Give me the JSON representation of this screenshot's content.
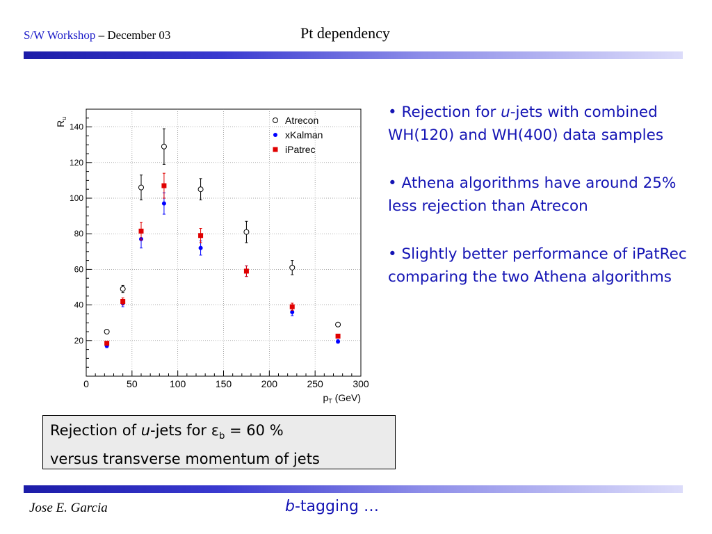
{
  "header": {
    "workshop": "S/W Workshop",
    "dash": " – ",
    "date": "December 03",
    "title": "Pt dependency"
  },
  "bullets": {
    "b1_pre": "• Rejection for ",
    "b1_em": "u",
    "b1_post": "-jets with combined WH(120) and WH(400) data samples",
    "b2": "• Athena algorithms have around 25% less rejection than Atrecon",
    "b3": "• Slightly better performance of iPatRec comparing the two Athena  algorithms"
  },
  "caption": {
    "pre": "Rejection of ",
    "em": "u",
    "mid": "-jets for ",
    "eps": "ε",
    "sub": "b",
    "post": " = 60 %",
    "line2": "versus transverse momentum of jets"
  },
  "footer": {
    "author": "Jose E. Garcia",
    "topic_em": "b",
    "topic_rest": "-tagging …"
  },
  "colors": {
    "accent_text": "#1414b4",
    "xkalman": "#0000ff",
    "ipatrec": "#e00000",
    "atrecon": "#000000"
  },
  "chart_data": {
    "type": "scatter",
    "title": "",
    "xlabel": "p_T (GeV)",
    "ylabel": "R_u",
    "xlim": [
      0,
      300
    ],
    "ylim": [
      0,
      150
    ],
    "xticks": [
      0,
      50,
      100,
      150,
      200,
      250,
      300
    ],
    "yticks": [
      20,
      40,
      60,
      80,
      100,
      120,
      140
    ],
    "grid": true,
    "legend_position": "top-right",
    "series": [
      {
        "name": "Atrecon",
        "marker": "open-circle",
        "x": [
          22.5,
          40,
          60,
          85,
          125,
          175,
          225,
          275
        ],
        "y": [
          25,
          49,
          106,
          129,
          105,
          81,
          61,
          29
        ],
        "err": [
          1,
          2,
          7,
          10,
          6,
          6,
          4,
          1
        ]
      },
      {
        "name": "xKalman",
        "marker": "filled-circle",
        "x": [
          22.5,
          40,
          60,
          85,
          125,
          175,
          225,
          275
        ],
        "y": [
          17,
          41,
          77,
          97,
          72,
          59,
          36,
          19.5
        ],
        "err": [
          1,
          2,
          5,
          6,
          4,
          3,
          2,
          1
        ]
      },
      {
        "name": "iPatrec",
        "marker": "filled-square",
        "x": [
          22.5,
          40,
          60,
          85,
          125,
          175,
          225,
          275
        ],
        "y": [
          18.5,
          42,
          81.5,
          107,
          79,
          59,
          39,
          22.5
        ],
        "err": [
          1,
          2,
          5,
          7,
          4,
          3,
          2,
          1
        ]
      }
    ]
  }
}
